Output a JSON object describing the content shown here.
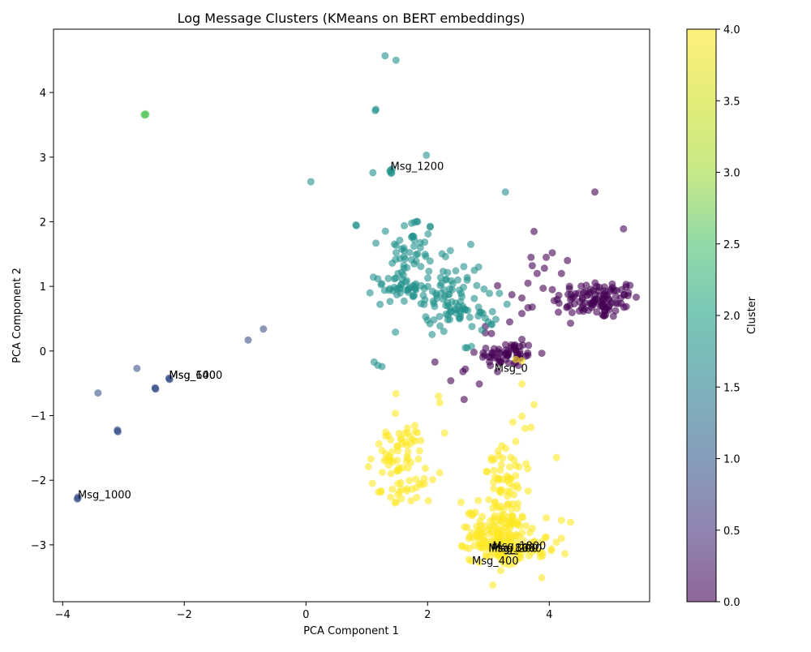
{
  "chart_data": {
    "type": "scatter",
    "title": "Log Message Clusters (KMeans on BERT embeddings)",
    "xlabel": "PCA Component 1",
    "ylabel": "PCA Component 2",
    "xlim": [
      -4.15,
      5.65
    ],
    "ylim": [
      -3.88,
      4.98
    ],
    "xticks": [
      {
        "value": -4,
        "label": "−4"
      },
      {
        "value": -2,
        "label": "−2"
      },
      {
        "value": 0,
        "label": "0"
      },
      {
        "value": 2,
        "label": "2"
      },
      {
        "value": 4,
        "label": "4"
      }
    ],
    "yticks": [
      {
        "value": -3,
        "label": "−3"
      },
      {
        "value": -2,
        "label": "−2"
      },
      {
        "value": -1,
        "label": "−1"
      },
      {
        "value": 0,
        "label": "0"
      },
      {
        "value": 1,
        "label": "1"
      },
      {
        "value": 2,
        "label": "2"
      },
      {
        "value": 3,
        "label": "3"
      },
      {
        "value": 4,
        "label": "4"
      }
    ],
    "grid": false,
    "colormap": "viridis",
    "colors": {
      "cluster_0": "#440154",
      "cluster_1": "#3b528b",
      "cluster_2": "#21918c",
      "cluster_3": "#5ec962",
      "cluster_4": "#fde725"
    },
    "point_alpha": 0.6,
    "colorbar": {
      "label": "Cluster",
      "range": [
        0.0,
        4.0
      ],
      "ticks": [
        {
          "value": 0.0,
          "label": "0.0"
        },
        {
          "value": 0.5,
          "label": "0.5"
        },
        {
          "value": 1.0,
          "label": "1.0"
        },
        {
          "value": 1.5,
          "label": "1.5"
        },
        {
          "value": 2.0,
          "label": "2.0"
        },
        {
          "value": 2.5,
          "label": "2.5"
        },
        {
          "value": 3.0,
          "label": "3.0"
        },
        {
          "value": 3.5,
          "label": "3.5"
        },
        {
          "value": 4.0,
          "label": "4.0"
        }
      ]
    },
    "clusters": [
      {
        "cluster": 0,
        "centers": [
          [
            4.8,
            0.8
          ],
          [
            3.3,
            -0.05
          ]
        ],
        "blobs": [
          {
            "center": [
              4.8,
              0.8
            ],
            "spread": [
              0.35,
              0.15
            ],
            "count": 110
          },
          {
            "center": [
              3.3,
              -0.05
            ],
            "spread": [
              0.25,
              0.1
            ],
            "count": 60
          }
        ],
        "points": [
          [
            4.75,
            2.46
          ],
          [
            5.22,
            1.89
          ],
          [
            3.75,
            1.85
          ],
          [
            4.05,
            1.52
          ],
          [
            3.95,
            1.45
          ],
          [
            3.7,
            1.45
          ],
          [
            4.3,
            1.4
          ],
          [
            3.72,
            1.32
          ],
          [
            3.92,
            1.28
          ],
          [
            3.8,
            1.2
          ],
          [
            4.2,
            1.2
          ],
          [
            3.15,
            1.01
          ],
          [
            3.65,
            1.05
          ],
          [
            4.05,
            0.95
          ],
          [
            3.55,
            0.82
          ],
          [
            4.08,
            0.78
          ],
          [
            3.65,
            0.67
          ],
          [
            3.72,
            0.68
          ],
          [
            4.15,
            0.6
          ],
          [
            3.55,
            0.58
          ],
          [
            4.35,
            0.43
          ],
          [
            3.35,
            0.45
          ],
          [
            2.95,
            0.38
          ],
          [
            2.95,
            0.28
          ],
          [
            3.05,
            0.27
          ],
          [
            2.12,
            -0.17
          ],
          [
            2.62,
            -0.28
          ],
          [
            2.58,
            -0.32
          ],
          [
            2.38,
            -0.46
          ],
          [
            2.85,
            -0.51
          ],
          [
            2.6,
            -0.75
          ],
          [
            3.15,
            -0.32
          ],
          [
            3.55,
            0.18
          ]
        ]
      },
      {
        "cluster": 1,
        "centers": [
          [
            -3.75,
            -2.28
          ],
          [
            -3.1,
            -1.24
          ],
          [
            -2.48,
            -0.58
          ],
          [
            -2.25,
            -0.43
          ]
        ],
        "points": [
          [
            -3.75,
            -2.26
          ],
          [
            -3.75,
            -2.28
          ],
          [
            -3.76,
            -2.29
          ],
          [
            -3.1,
            -1.22
          ],
          [
            -3.1,
            -1.24
          ],
          [
            -3.09,
            -1.25
          ],
          [
            -2.48,
            -0.57
          ],
          [
            -2.48,
            -0.58
          ],
          [
            -2.47,
            -0.59
          ],
          [
            -2.25,
            -0.42
          ],
          [
            -2.25,
            -0.43
          ],
          [
            -2.24,
            -0.44
          ],
          [
            -3.42,
            -0.65
          ],
          [
            -2.78,
            -0.27
          ],
          [
            -0.95,
            0.17
          ],
          [
            -0.7,
            0.34
          ]
        ]
      },
      {
        "cluster": 2,
        "centers": [
          [
            2.0,
            1.1
          ],
          [
            1.4,
            2.8
          ]
        ],
        "blobs": [
          {
            "center": [
              1.75,
              1.55
            ],
            "spread": [
              0.18,
              0.3
            ],
            "count": 45
          },
          {
            "center": [
              1.5,
              1.0
            ],
            "spread": [
              0.18,
              0.12
            ],
            "count": 35
          },
          {
            "center": [
              2.3,
              0.95
            ],
            "spread": [
              0.3,
              0.3
            ],
            "count": 70
          },
          {
            "center": [
              2.6,
              0.6
            ],
            "spread": [
              0.3,
              0.15
            ],
            "count": 40
          }
        ],
        "points": [
          [
            1.3,
            4.57
          ],
          [
            1.48,
            4.5
          ],
          [
            1.15,
            3.74
          ],
          [
            1.14,
            3.72
          ],
          [
            1.98,
            3.03
          ],
          [
            1.38,
            2.78
          ],
          [
            1.4,
            2.75
          ],
          [
            1.39,
            2.8
          ],
          [
            1.41,
            2.76
          ],
          [
            1.42,
            2.82
          ],
          [
            1.1,
            2.76
          ],
          [
            0.08,
            2.62
          ],
          [
            3.28,
            2.46
          ],
          [
            0.82,
            1.95
          ],
          [
            0.83,
            1.94
          ],
          [
            1.15,
            1.67
          ],
          [
            1.12,
            -0.17
          ],
          [
            1.18,
            -0.22
          ],
          [
            1.25,
            -0.24
          ],
          [
            2.65,
            0.05
          ],
          [
            2.72,
            0.07
          ],
          [
            2.62,
            0.05
          ]
        ]
      },
      {
        "cluster": 3,
        "centers": [
          [
            -2.65,
            3.66
          ]
        ],
        "points": [
          [
            -2.66,
            3.66
          ],
          [
            -2.64,
            3.67
          ],
          [
            -2.65,
            3.65
          ],
          [
            -2.63,
            3.66
          ]
        ]
      },
      {
        "cluster": 4,
        "centers": [
          [
            1.55,
            -1.75
          ],
          [
            3.25,
            -2.8
          ]
        ],
        "blobs": [
          {
            "center": [
              1.5,
              -1.6
            ],
            "spread": [
              0.25,
              0.25
            ],
            "count": 60
          },
          {
            "center": [
              1.65,
              -2.15
            ],
            "spread": [
              0.2,
              0.08
            ],
            "count": 25
          },
          {
            "center": [
              3.3,
              -2.1
            ],
            "spread": [
              0.2,
              0.3
            ],
            "count": 60
          },
          {
            "center": [
              3.2,
              -2.85
            ],
            "spread": [
              0.25,
              0.2
            ],
            "count": 160
          },
          {
            "center": [
              3.4,
              -3.15
            ],
            "spread": [
              0.35,
              0.12
            ],
            "count": 40
          }
        ],
        "points": [
          [
            1.48,
            -0.66
          ],
          [
            2.18,
            -0.7
          ],
          [
            2.2,
            -0.8
          ],
          [
            2.28,
            -1.27
          ],
          [
            3.55,
            -0.15
          ],
          [
            3.45,
            -0.13
          ],
          [
            3.55,
            -0.51
          ],
          [
            3.75,
            -0.83
          ],
          [
            3.55,
            -1.01
          ],
          [
            3.4,
            -1.1
          ],
          [
            3.45,
            -1.4
          ],
          [
            3.7,
            -1.18
          ],
          [
            3.6,
            -1.2
          ],
          [
            4.12,
            -1.65
          ],
          [
            3.05,
            -1.69
          ],
          [
            2.55,
            -2.34
          ],
          [
            2.7,
            -2.5
          ],
          [
            2.65,
            -2.73
          ],
          [
            2.85,
            -3.27
          ],
          [
            4.35,
            -2.65
          ],
          [
            4.2,
            -2.9
          ],
          [
            4.2,
            -2.62
          ]
        ]
      }
    ],
    "annotations": [
      {
        "text": "Msg_1200",
        "x": 1.39,
        "y": 2.8
      },
      {
        "text": "Msg_0",
        "x": 3.1,
        "y": -0.32
      },
      {
        "text": "Msg_1400",
        "x": -2.25,
        "y": -0.43
      },
      {
        "text": "Msg_600",
        "x": -2.25,
        "y": -0.43
      },
      {
        "text": "Msg_1000",
        "x": -3.75,
        "y": -2.28
      },
      {
        "text": "Msg_1800",
        "x": 3.07,
        "y": -3.07
      },
      {
        "text": "Msg_800",
        "x": 3.0,
        "y": -3.1
      },
      {
        "text": "Msg_1600",
        "x": 3.0,
        "y": -3.11
      },
      {
        "text": "Msg_200",
        "x": 3.05,
        "y": -3.11
      },
      {
        "text": "Msg_400",
        "x": 2.73,
        "y": -3.3
      }
    ]
  }
}
